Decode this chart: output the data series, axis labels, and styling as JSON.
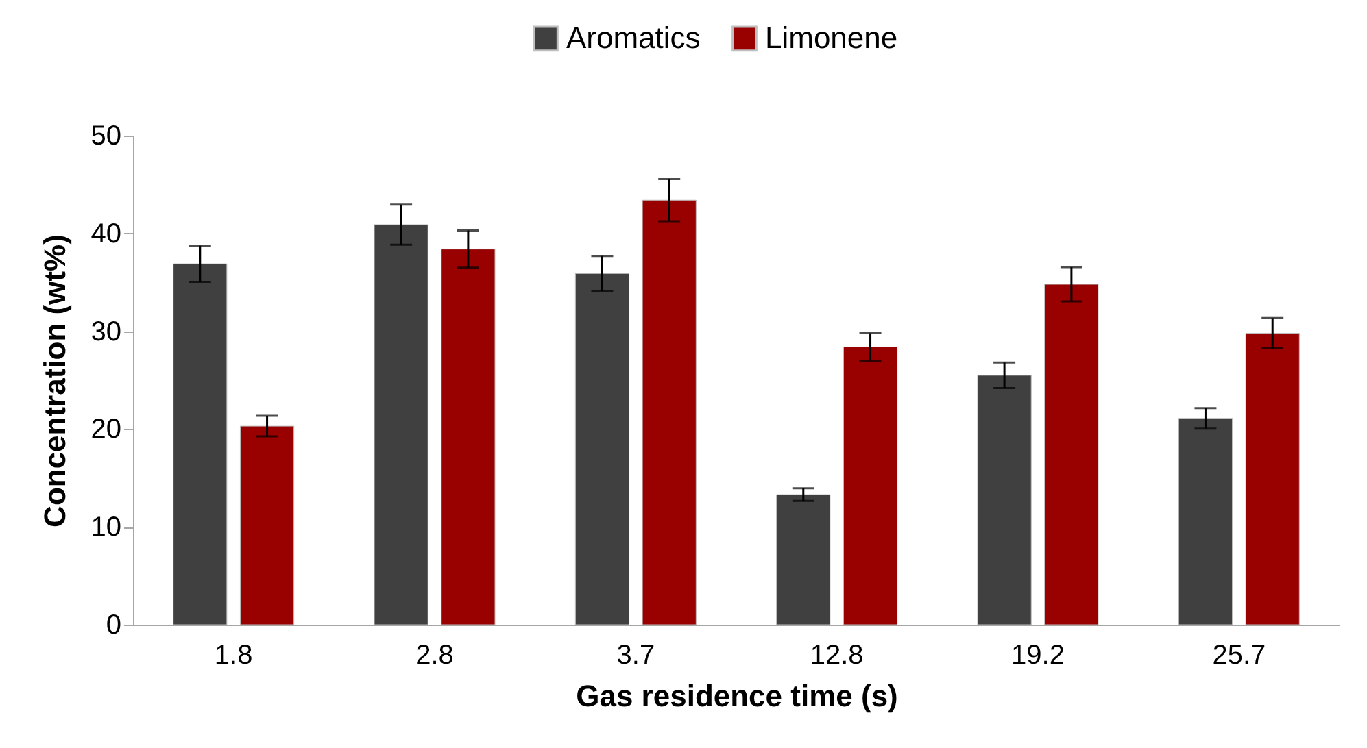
{
  "chart_data": {
    "type": "bar",
    "xlabel": "Gas residence time (s)",
    "ylabel": "Concentration (wt%)",
    "categories": [
      "1.8",
      "2.8",
      "3.7",
      "12.8",
      "19.2",
      "25.7"
    ],
    "series": [
      {
        "name": "Aromatics",
        "color": "#404040",
        "values": [
          36.9,
          40.9,
          35.9,
          13.3,
          25.5,
          21.1
        ],
        "errors": [
          1.85,
          2.05,
          1.8,
          0.65,
          1.3,
          1.05
        ]
      },
      {
        "name": "Limonene",
        "color": "#990000",
        "values": [
          20.3,
          38.4,
          43.4,
          28.4,
          34.8,
          29.8
        ],
        "errors": [
          1.05,
          1.9,
          2.15,
          1.4,
          1.75,
          1.55
        ]
      }
    ],
    "ylim": [
      0,
      50
    ],
    "yticks": [
      0,
      10,
      20,
      30,
      40,
      50
    ],
    "grid": false,
    "legend": "top"
  }
}
